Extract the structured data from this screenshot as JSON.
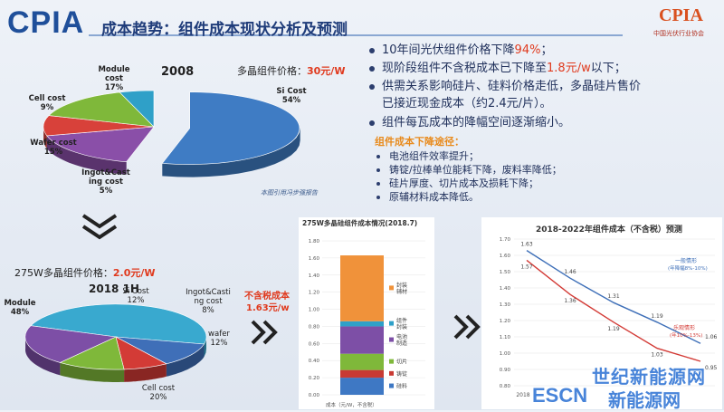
{
  "header": {
    "logo_text": "CPIA",
    "title": "成本趋势：组件成本现状分析及预测",
    "badge_text": "CPIA",
    "badge_sub": "中国光伏行业协会"
  },
  "bullets": [
    {
      "pre": "10年间光伏组件价格下降",
      "hl": "94%",
      "post": "；"
    },
    {
      "pre": "现阶段组件不含税成本已下降至",
      "hl": "1.8元/w",
      "post": "以下；"
    },
    {
      "pre": "供需关系影响硅片、硅料价格走低，多晶硅片售价",
      "hl": "",
      "post": ""
    },
    {
      "pre": "已接近现金成本（约2.4元/片）。",
      "hl": "",
      "post": ""
    },
    {
      "pre": "组件每瓦成本的降幅空间逐渐缩小。",
      "hl": "",
      "post": ""
    }
  ],
  "sub_heading": "组件成本下降途径：",
  "sub_bullets": [
    "电池组件效率提升；",
    "铸锭/拉棒单位能耗下降，废料率降低；",
    "硅片厚度、切片成本及损耗下降；",
    "原辅材料成本降低。"
  ],
  "pie2008": {
    "year": "2008",
    "price_label": "多晶组件价格：",
    "price_value": "30元/W",
    "source": "本图引用冯步强报告",
    "labels": {
      "si": [
        "Si Cost",
        "54%"
      ],
      "module": [
        "Module",
        "cost",
        "17%"
      ],
      "cell": [
        "Cell cost",
        "9%"
      ],
      "wafer": [
        "Wafer cost",
        "15%"
      ],
      "ingot": [
        "Ingot&Cast",
        "ing cost",
        "5%"
      ]
    }
  },
  "pie2018": {
    "year": "2018 1H",
    "price_label": "275W多晶组件价格：",
    "price_value": "2.0元/W",
    "tax_label_1": "不含税成本",
    "tax_label_2": "1.63元/w",
    "labels": {
      "module": [
        "Module",
        "48%"
      ],
      "si": [
        "Si Cost",
        "12%"
      ],
      "ingot": [
        "Ingot&Casti",
        "ng cost",
        "8%"
      ],
      "wafer": [
        "wafer",
        "12%"
      ],
      "cell": [
        "Cell cost",
        "20%"
      ]
    }
  },
  "arrows": {
    "chev1": "»",
    "chev2": "»"
  },
  "watermark": {
    "line1": "世纪新能源网",
    "line2": "ESCN",
    "line3": "新能源网"
  },
  "chart_data": [
    {
      "type": "pie",
      "title": "2008",
      "categories": [
        "Si Cost",
        "Module cost",
        "Cell cost",
        "Wafer cost",
        "Ingot&Casting cost"
      ],
      "values": [
        54,
        17,
        9,
        15,
        5
      ],
      "colors": [
        "#3f7cc4",
        "#8a4fa8",
        "#d8413a",
        "#7fb83a",
        "#2fa0c8"
      ]
    },
    {
      "type": "pie",
      "title": "2018 1H",
      "categories": [
        "Module",
        "Si Cost",
        "Ingot&Casting cost",
        "wafer",
        "Cell cost"
      ],
      "values": [
        48,
        12,
        8,
        12,
        20
      ],
      "colors": [
        "#39a9cf",
        "#3f6fb8",
        "#d33b36",
        "#7fb83a",
        "#7d4fa6"
      ]
    },
    {
      "type": "bar",
      "title": "275W多晶硅组件成本情况(2018.7)",
      "xlabel": "成本（元/W，不含税）",
      "ylim": [
        0,
        1.8
      ],
      "yticks": [
        0.0,
        0.2,
        0.4,
        0.6,
        0.8,
        1.0,
        1.2,
        1.4,
        1.6,
        1.8
      ],
      "series": [
        {
          "name": "硅料",
          "values": [
            0.2
          ],
          "color": "#3e78c4"
        },
        {
          "name": "铸锭",
          "values": [
            0.09
          ],
          "color": "#c83a33"
        },
        {
          "name": "切片",
          "values": [
            0.19
          ],
          "color": "#7fb83a"
        },
        {
          "name": "电池制造",
          "values": [
            0.32
          ],
          "color": "#7d4fa6"
        },
        {
          "name": "组件封装",
          "values": [
            0.06
          ],
          "color": "#2fa0c8"
        },
        {
          "name": "封装辅材",
          "values": [
            0.77
          ],
          "color": "#f0923a"
        }
      ],
      "legend_labels": [
        "封装\n辅材",
        "组件\n封装",
        "电池\n制造",
        "切片",
        "铸锭",
        "硅料"
      ]
    },
    {
      "type": "line",
      "title": "2018-2022年组件成本（不含税）预测",
      "x": [
        "2018",
        "2019",
        "2020",
        "2021",
        "2022"
      ],
      "ylim": [
        0.8,
        1.7
      ],
      "yticks": [
        0.8,
        0.9,
        1.0,
        1.1,
        1.2,
        1.3,
        1.4,
        1.5,
        1.6,
        1.7
      ],
      "series": [
        {
          "name": "一般情形",
          "values": [
            1.63,
            1.46,
            1.31,
            1.19,
            1.06
          ],
          "color": "#3e6fb8",
          "note": "(年降幅8%-10%)"
        },
        {
          "name": "乐观情形",
          "values": [
            1.57,
            1.36,
            1.19,
            1.03,
            0.95
          ],
          "color": "#d33b36",
          "note": "(年10%-13%)"
        }
      ],
      "data_labels": [
        [
          "1.63",
          "1.46",
          "1.31",
          "1.19",
          "1.06"
        ],
        [
          "1.57",
          "1.36",
          "1.19",
          "1.03",
          "0.95"
        ]
      ]
    }
  ]
}
